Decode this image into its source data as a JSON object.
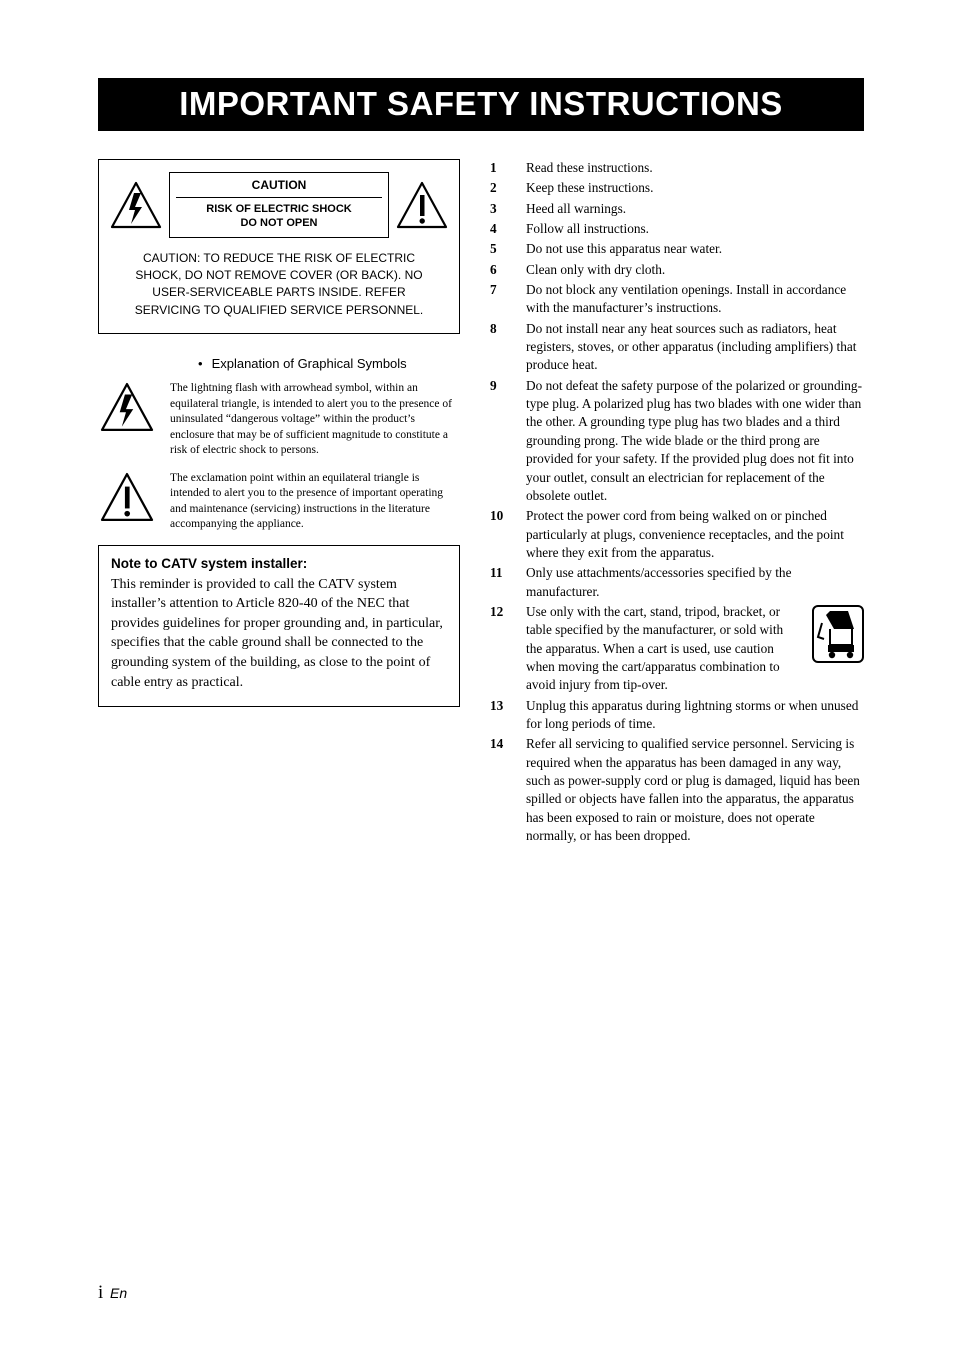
{
  "title": "IMPORTANT SAFETY INSTRUCTIONS",
  "caution_panel": {
    "word": "CAUTION",
    "sub1": "RISK OF ELECTRIC SHOCK",
    "sub2": "DO NOT OPEN",
    "body": "CAUTION: TO REDUCE THE RISK OF ELECTRIC SHOCK, DO NOT REMOVE COVER (OR BACK). NO USER-SERVICEABLE PARTS INSIDE. REFER SERVICING TO QUALIFIED SERVICE PERSONNEL."
  },
  "explanation_heading": "Explanation of Graphical Symbols",
  "symbol_lightning": "The lightning flash with arrowhead symbol, within an equilateral triangle, is intended to alert you to the presence of uninsulated “dangerous voltage” within the product’s enclosure that may be of sufficient magnitude to constitute a risk of electric shock to persons.",
  "symbol_exclaim": "The exclamation point within an equilateral triangle is intended to alert you to the presence of important operating and maintenance (servicing) instructions in the literature accompanying the appliance.",
  "catv": {
    "title": "Note to CATV system installer:",
    "body": "This reminder is provided to call the CATV system installer’s attention to Article 820-40 of the NEC that provides guidelines for proper grounding and, in particular, specifies that the cable ground shall be connected to the grounding system of the building, as close to the point of cable entry as practical."
  },
  "instructions": [
    {
      "n": "1",
      "t": "Read these instructions."
    },
    {
      "n": "2",
      "t": "Keep these instructions."
    },
    {
      "n": "3",
      "t": "Heed all warnings."
    },
    {
      "n": "4",
      "t": "Follow all instructions."
    },
    {
      "n": "5",
      "t": "Do not use this apparatus near water."
    },
    {
      "n": "6",
      "t": "Clean only with dry cloth."
    },
    {
      "n": "7",
      "t": "Do not block any ventilation openings. Install in accordance with the manufacturer’s instructions."
    },
    {
      "n": "8",
      "t": "Do not install near any heat sources such as radiators, heat registers, stoves, or other apparatus (including amplifiers) that produce heat."
    },
    {
      "n": "9",
      "t": "Do not defeat the safety purpose of the polarized or grounding-type plug. A polarized plug has two blades with one wider than the other. A grounding type plug has two blades and a third grounding prong. The wide blade or the third prong are provided for your safety. If the provided plug does not fit into your outlet, consult an electrician for replacement of the obsolete outlet."
    },
    {
      "n": "10",
      "t": "Protect the power cord from being walked on or pinched particularly at plugs, convenience receptacles, and the point where they exit from the apparatus."
    },
    {
      "n": "11",
      "t": "Only use attachments/accessories specified by the manufacturer."
    },
    {
      "n": "12",
      "t": "Use only with the cart, stand, tripod, bracket, or table specified by the manufacturer, or sold with the apparatus. When a cart is used, use caution when moving the cart/apparatus combination to avoid injury from tip-over.",
      "cart": true
    },
    {
      "n": "13",
      "t": "Unplug this apparatus during lightning storms or when unused for long periods of time."
    },
    {
      "n": "14",
      "t": "Refer all servicing to qualified service personnel. Servicing is required when the apparatus has been damaged in any way, such as power-supply cord or plug is damaged, liquid has been spilled or objects have fallen into the apparatus, the apparatus has been exposed to rain or moisture, does not operate normally, or has been dropped."
    }
  ],
  "footer": {
    "page": "i",
    "lang": "En"
  },
  "colors": {
    "black": "#000000",
    "white": "#ffffff"
  }
}
